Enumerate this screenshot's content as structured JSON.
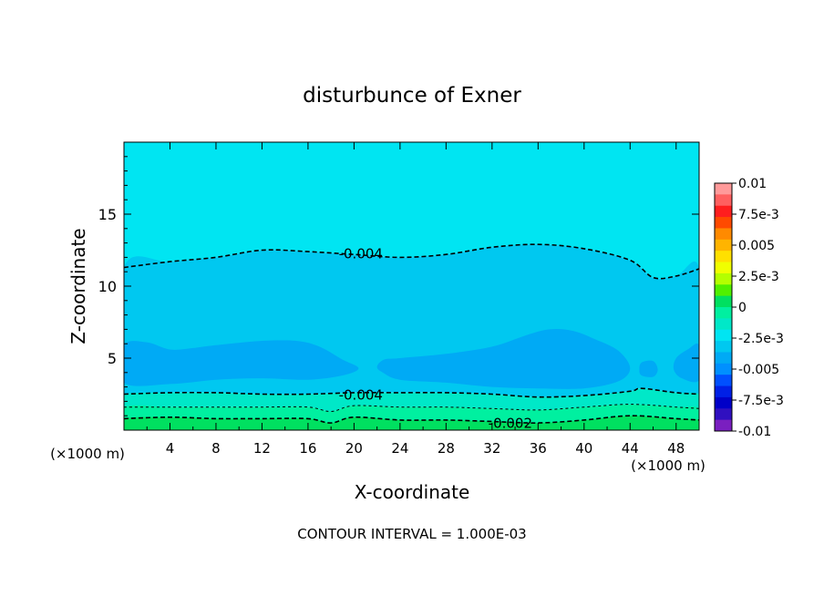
{
  "chart_data": {
    "type": "contour",
    "title": "disturbunce of Exner",
    "xlabel": "X-coordinate",
    "ylabel": "Z-coordinate",
    "x_unit_left": "(×1000 m)",
    "x_unit_right": "(×1000 m)",
    "xlim": [
      0,
      50
    ],
    "ylim": [
      0,
      20
    ],
    "x_ticks": [
      4,
      8,
      12,
      16,
      20,
      24,
      28,
      32,
      36,
      40,
      44,
      48
    ],
    "x_tick_labels": [
      "4",
      "8",
      "12",
      "16",
      "20",
      "24",
      "28",
      "32",
      "36",
      "40",
      "44",
      "48"
    ],
    "y_ticks": [
      5,
      10,
      15
    ],
    "y_tick_labels": [
      "5",
      "10",
      "15"
    ],
    "contour_interval_text": "CONTOUR INTERVAL = 1.000E-03",
    "contour_labels": [
      {
        "text": "-0.004",
        "x": 19,
        "z": 12.3
      },
      {
        "text": "-0.004",
        "x": 19,
        "z": 2.5
      },
      {
        "text": "-0.002",
        "x": 32,
        "z": 0.55
      }
    ],
    "contour_lines": [
      {
        "level": -0.004,
        "style": "dashed",
        "points": [
          [
            0,
            11.3
          ],
          [
            4,
            11.7
          ],
          [
            8,
            12.0
          ],
          [
            12,
            12.5
          ],
          [
            16,
            12.4
          ],
          [
            20,
            12.2
          ],
          [
            24,
            12.0
          ],
          [
            28,
            12.2
          ],
          [
            32,
            12.7
          ],
          [
            36,
            12.9
          ],
          [
            40,
            12.6
          ],
          [
            44,
            11.8
          ],
          [
            46,
            10.6
          ],
          [
            48,
            10.7
          ],
          [
            50,
            11.2
          ]
        ]
      },
      {
        "level": -0.004,
        "style": "dashed",
        "points": [
          [
            0,
            2.5
          ],
          [
            4,
            2.6
          ],
          [
            8,
            2.6
          ],
          [
            12,
            2.5
          ],
          [
            16,
            2.5
          ],
          [
            20,
            2.6
          ],
          [
            24,
            2.6
          ],
          [
            28,
            2.6
          ],
          [
            32,
            2.5
          ],
          [
            36,
            2.3
          ],
          [
            40,
            2.4
          ],
          [
            44,
            2.7
          ],
          [
            45,
            2.9
          ],
          [
            48,
            2.6
          ],
          [
            50,
            2.5
          ]
        ]
      },
      {
        "level": -0.003,
        "style": "dashed",
        "points": [
          [
            0,
            1.6
          ],
          [
            4,
            1.6
          ],
          [
            8,
            1.6
          ],
          [
            12,
            1.6
          ],
          [
            16,
            1.6
          ],
          [
            18,
            1.3
          ],
          [
            20,
            1.7
          ],
          [
            24,
            1.6
          ],
          [
            28,
            1.6
          ],
          [
            32,
            1.5
          ],
          [
            36,
            1.4
          ],
          [
            40,
            1.6
          ],
          [
            44,
            1.8
          ],
          [
            48,
            1.6
          ],
          [
            50,
            1.5
          ]
        ]
      },
      {
        "level": -0.002,
        "style": "dashed",
        "points": [
          [
            0,
            0.8
          ],
          [
            4,
            0.9
          ],
          [
            8,
            0.8
          ],
          [
            12,
            0.8
          ],
          [
            16,
            0.8
          ],
          [
            18,
            0.5
          ],
          [
            20,
            0.9
          ],
          [
            24,
            0.7
          ],
          [
            28,
            0.7
          ],
          [
            32,
            0.6
          ],
          [
            36,
            0.5
          ],
          [
            40,
            0.7
          ],
          [
            44,
            1.0
          ],
          [
            48,
            0.8
          ],
          [
            50,
            0.7
          ]
        ]
      }
    ],
    "filled_regions": [
      {
        "color": "#00e5f2",
        "outline": [
          [
            0,
            20
          ],
          [
            50,
            20
          ],
          [
            50,
            11.2
          ],
          [
            48,
            10.7
          ],
          [
            46,
            10.6
          ],
          [
            44,
            11.8
          ],
          [
            40,
            12.6
          ],
          [
            36,
            12.9
          ],
          [
            32,
            12.7
          ],
          [
            28,
            12.2
          ],
          [
            24,
            12.0
          ],
          [
            20,
            12.2
          ],
          [
            16,
            12.4
          ],
          [
            12,
            12.5
          ],
          [
            8,
            12.0
          ],
          [
            4,
            11.7
          ],
          [
            0,
            11.3
          ]
        ]
      },
      {
        "color": "#00c8f0",
        "outline": [
          [
            0,
            11.3
          ],
          [
            4,
            11.7
          ],
          [
            8,
            12.0
          ],
          [
            12,
            12.5
          ],
          [
            16,
            12.4
          ],
          [
            20,
            12.2
          ],
          [
            24,
            12.0
          ],
          [
            28,
            12.2
          ],
          [
            32,
            12.7
          ],
          [
            36,
            12.9
          ],
          [
            40,
            12.6
          ],
          [
            44,
            11.8
          ],
          [
            46,
            10.6
          ],
          [
            48,
            10.7
          ],
          [
            50,
            11.2
          ],
          [
            50,
            2.5
          ],
          [
            48,
            2.6
          ],
          [
            45,
            2.9
          ],
          [
            44,
            2.7
          ],
          [
            40,
            2.4
          ],
          [
            36,
            2.3
          ],
          [
            32,
            2.5
          ],
          [
            28,
            2.6
          ],
          [
            24,
            2.6
          ],
          [
            20,
            2.6
          ],
          [
            16,
            2.5
          ],
          [
            12,
            2.5
          ],
          [
            8,
            2.6
          ],
          [
            4,
            2.6
          ],
          [
            0,
            2.5
          ]
        ]
      },
      {
        "color": "#00aaf5",
        "outline": [
          [
            0,
            5.9
          ],
          [
            2,
            6.1
          ],
          [
            4,
            5.6
          ],
          [
            6,
            5.7
          ],
          [
            8,
            5.9
          ],
          [
            12,
            6.2
          ],
          [
            15,
            6.2
          ],
          [
            17,
            5.8
          ],
          [
            19,
            4.9
          ],
          [
            20.4,
            4.3
          ],
          [
            19,
            3.8
          ],
          [
            16,
            3.5
          ],
          [
            12,
            3.6
          ],
          [
            8,
            3.5
          ],
          [
            4,
            3.2
          ],
          [
            0,
            3.3
          ]
        ]
      },
      {
        "color": "#00aaf5",
        "outline": [
          [
            22.6,
            4.9
          ],
          [
            24,
            5.0
          ],
          [
            28,
            5.3
          ],
          [
            32,
            5.8
          ],
          [
            35,
            6.6
          ],
          [
            37,
            7.0
          ],
          [
            39,
            6.9
          ],
          [
            41,
            6.3
          ],
          [
            43,
            5.5
          ],
          [
            44,
            4.3
          ],
          [
            43,
            3.4
          ],
          [
            40,
            2.9
          ],
          [
            36,
            2.9
          ],
          [
            32,
            3.0
          ],
          [
            28,
            3.3
          ],
          [
            24,
            3.5
          ],
          [
            22.5,
            4.0
          ],
          [
            22,
            4.4
          ]
        ]
      },
      {
        "color": "#00aaf5",
        "outline": [
          [
            45,
            4.7
          ],
          [
            46,
            4.8
          ],
          [
            46.4,
            4.2
          ],
          [
            46,
            3.7
          ],
          [
            45,
            3.8
          ],
          [
            44.8,
            4.2
          ]
        ]
      },
      {
        "color": "#00aaf5",
        "outline": [
          [
            50,
            5.9
          ],
          [
            49,
            5.6
          ],
          [
            48,
            5.0
          ],
          [
            47.8,
            4.2
          ],
          [
            48.5,
            3.6
          ],
          [
            50,
            3.5
          ]
        ]
      },
      {
        "color": "#00e8c8",
        "outline": [
          [
            0,
            2.5
          ],
          [
            4,
            2.6
          ],
          [
            8,
            2.6
          ],
          [
            12,
            2.5
          ],
          [
            16,
            2.5
          ],
          [
            20,
            2.6
          ],
          [
            24,
            2.6
          ],
          [
            28,
            2.6
          ],
          [
            32,
            2.5
          ],
          [
            36,
            2.3
          ],
          [
            40,
            2.4
          ],
          [
            44,
            2.7
          ],
          [
            45,
            2.9
          ],
          [
            48,
            2.6
          ],
          [
            50,
            2.5
          ],
          [
            50,
            1.5
          ],
          [
            48,
            1.6
          ],
          [
            44,
            1.8
          ],
          [
            40,
            1.6
          ],
          [
            36,
            1.4
          ],
          [
            32,
            1.5
          ],
          [
            28,
            1.6
          ],
          [
            24,
            1.6
          ],
          [
            20,
            1.7
          ],
          [
            18,
            1.3
          ],
          [
            16,
            1.6
          ],
          [
            12,
            1.6
          ],
          [
            8,
            1.6
          ],
          [
            4,
            1.6
          ],
          [
            0,
            1.6
          ]
        ]
      },
      {
        "color": "#00f0a0",
        "outline": [
          [
            0,
            1.6
          ],
          [
            4,
            1.6
          ],
          [
            8,
            1.6
          ],
          [
            12,
            1.6
          ],
          [
            16,
            1.6
          ],
          [
            18,
            1.3
          ],
          [
            20,
            1.7
          ],
          [
            24,
            1.6
          ],
          [
            28,
            1.6
          ],
          [
            32,
            1.5
          ],
          [
            36,
            1.4
          ],
          [
            40,
            1.6
          ],
          [
            44,
            1.8
          ],
          [
            48,
            1.6
          ],
          [
            50,
            1.5
          ],
          [
            50,
            0
          ],
          [
            0,
            0
          ]
        ]
      },
      {
        "color": "#00e060",
        "outline": [
          [
            0,
            0.8
          ],
          [
            4,
            0.9
          ],
          [
            8,
            0.8
          ],
          [
            12,
            0.8
          ],
          [
            16,
            0.8
          ],
          [
            18,
            0.5
          ],
          [
            20,
            0.9
          ],
          [
            24,
            0.7
          ],
          [
            28,
            0.7
          ],
          [
            32,
            0.6
          ],
          [
            36,
            0.5
          ],
          [
            40,
            0.7
          ],
          [
            44,
            1.0
          ],
          [
            48,
            0.8
          ],
          [
            50,
            0.7
          ],
          [
            50,
            0
          ],
          [
            0,
            0
          ]
        ]
      }
    ],
    "colorbar": {
      "tick_labels": [
        "0.01",
        "7.5e-3",
        "0.005",
        "2.5e-3",
        "0",
        "-2.5e-3",
        "-0.005",
        "-7.5e-3",
        "-0.01"
      ],
      "colors_top_to_bottom": [
        "#ff9a9a",
        "#ff6060",
        "#ff1e1e",
        "#ff4a00",
        "#ff8a00",
        "#ffb400",
        "#ffe000",
        "#f0ff00",
        "#b4ff00",
        "#50f000",
        "#00e060",
        "#00f0a0",
        "#00e8c8",
        "#00e5f2",
        "#00c8f0",
        "#00aaf5",
        "#0090ff",
        "#0050ff",
        "#0020e6",
        "#0000c8",
        "#3010c0",
        "#7a1fc0"
      ]
    }
  }
}
